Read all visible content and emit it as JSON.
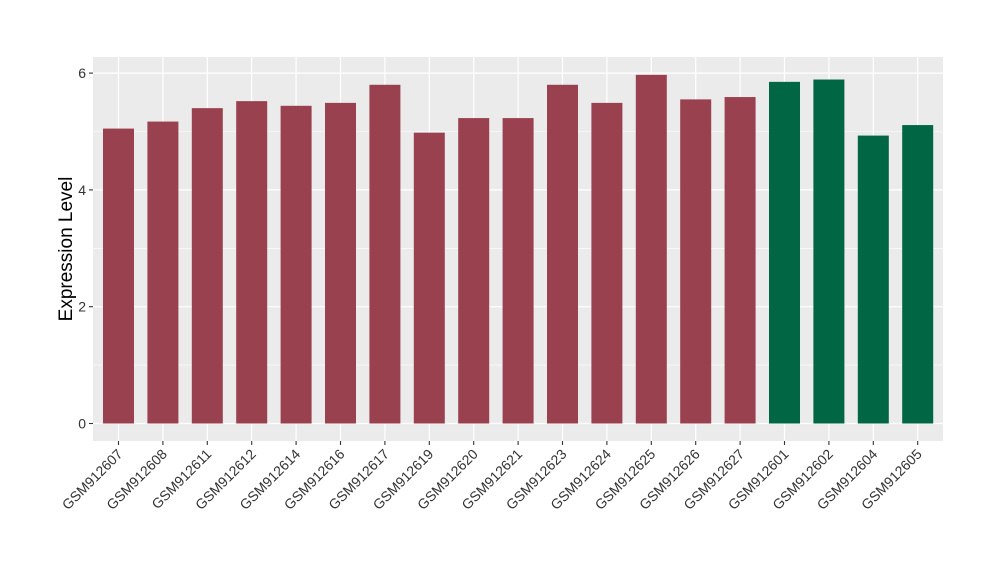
{
  "chart_data": {
    "type": "bar",
    "title": "",
    "xlabel": "",
    "ylabel": "Expression Level",
    "ylim": [
      0,
      6.3
    ],
    "yticks": [
      0,
      2,
      4,
      6
    ],
    "grid": true,
    "legend": "none",
    "categories": [
      "GSM912607",
      "GSM912608",
      "GSM912611",
      "GSM912612",
      "GSM912614",
      "GSM912616",
      "GSM912617",
      "GSM912619",
      "GSM912620",
      "GSM912621",
      "GSM912623",
      "GSM912624",
      "GSM912625",
      "GSM912626",
      "GSM912627",
      "GSM912601",
      "GSM912602",
      "GSM912604",
      "GSM912605"
    ],
    "values": [
      5.05,
      5.17,
      5.4,
      5.52,
      5.44,
      5.49,
      5.8,
      4.98,
      5.23,
      5.23,
      5.8,
      5.49,
      5.97,
      5.55,
      5.59,
      5.85,
      5.89,
      4.93,
      5.11
    ],
    "groups": [
      "a",
      "a",
      "a",
      "a",
      "a",
      "a",
      "a",
      "a",
      "a",
      "a",
      "a",
      "a",
      "a",
      "a",
      "a",
      "b",
      "b",
      "b",
      "b"
    ],
    "colors": {
      "a": "#9a4150",
      "b": "#006644"
    },
    "panel_background": "#ebebeb",
    "gridline_color": "#ffffff"
  }
}
